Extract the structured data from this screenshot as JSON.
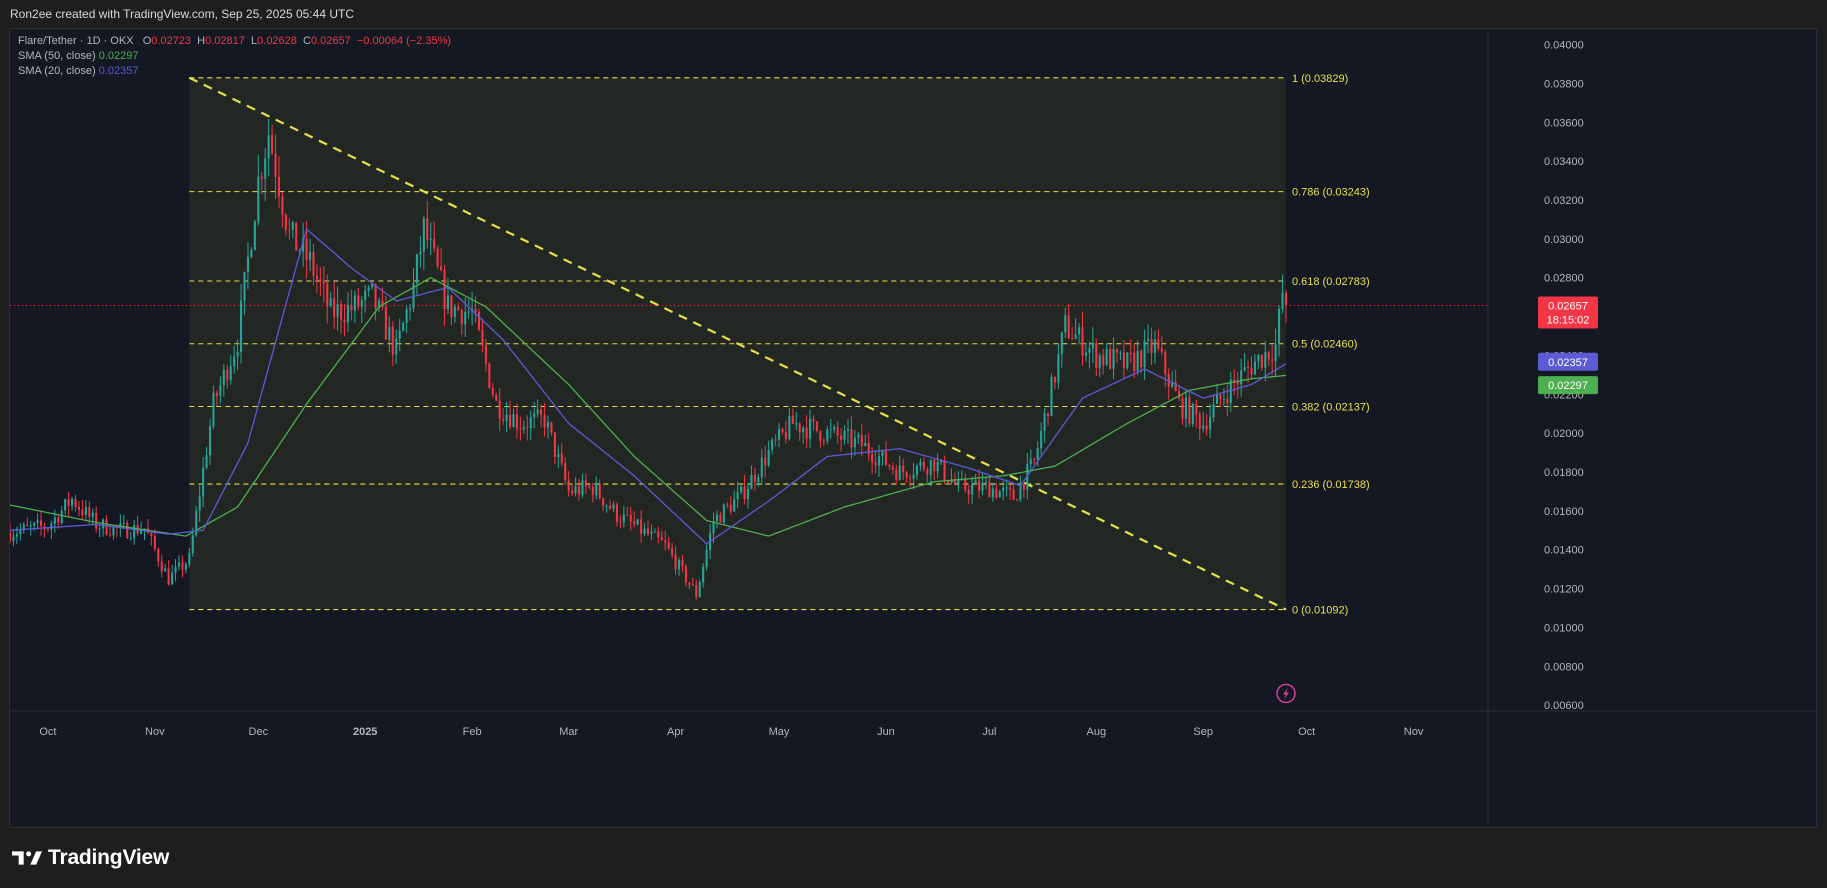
{
  "header": {
    "credit": "Ron2ee created with TradingView.com, Sep 25, 2025 05:44 UTC"
  },
  "legend": {
    "symbol": "Flare/Tether · 1D · OKX",
    "open_label": "O",
    "open": "0.02723",
    "high_label": "H",
    "high": "0.02817",
    "low_label": "L",
    "low": "0.02628",
    "close_label": "C",
    "close": "0.02657",
    "change": "−0.00064 (−2.35%)",
    "sma50_label": "SMA (50, close)",
    "sma50_value": "0.02297",
    "sma20_label": "SMA (20, close)",
    "sma20_value": "0.02357"
  },
  "price_tags": {
    "last": "0.02657",
    "countdown": "18:15:02",
    "sma20": "0.02357",
    "sma50": "0.02297"
  },
  "footer": {
    "brand": "TradingView"
  },
  "colors": {
    "background": "#141823",
    "up": "#26a69a",
    "down": "#f23645",
    "sma50": "#4caf50",
    "sma20": "#5b5bd6",
    "fib": "#e8e04a",
    "trendline": "#e8e04a"
  },
  "icons": {
    "flash": "lightning-icon",
    "logo": "tradingview-logo"
  },
  "chart_data": {
    "type": "candlestick",
    "symbol": "Flare/Tether",
    "timeframe": "1D",
    "exchange": "OKX",
    "x_labels": [
      "Oct",
      "Nov",
      "Dec",
      "2025",
      "Feb",
      "Mar",
      "Apr",
      "May",
      "Jun",
      "Jul",
      "Aug",
      "Sep",
      "Oct",
      "Nov"
    ],
    "x_label_dates": [
      "2024-10-01",
      "2024-11-01",
      "2024-12-01",
      "2025-01-01",
      "2025-02-01",
      "2025-03-01",
      "2025-04-01",
      "2025-05-01",
      "2025-06-01",
      "2025-07-01",
      "2025-08-01",
      "2025-09-01",
      "2025-10-01",
      "2025-11-01"
    ],
    "y_ticks": [
      "0.04000",
      "0.03800",
      "0.03600",
      "0.03400",
      "0.03200",
      "0.03000",
      "0.02800",
      "0.02600",
      "0.02400",
      "0.02200",
      "0.02000",
      "0.01800",
      "0.01600",
      "0.01400",
      "0.01200",
      "0.01000",
      "0.00800",
      "0.00600"
    ],
    "ylim": [
      0.0058,
      0.0408
    ],
    "x_range": [
      "2024-09-20",
      "2025-11-22"
    ],
    "last_price": 0.02657,
    "fibonacci": {
      "start_date": "2024-11-11",
      "end_date": "2025-09-25",
      "levels": [
        {
          "label": "1 (0.03829)",
          "value": 0.03829
        },
        {
          "label": "0.786 (0.03243)",
          "value": 0.03243
        },
        {
          "label": "0.618 (0.02783)",
          "value": 0.02783
        },
        {
          "label": "0.5 (0.02460)",
          "value": 0.0246
        },
        {
          "label": "0.382 (0.02137)",
          "value": 0.02137
        },
        {
          "label": "0.236 (0.01738)",
          "value": 0.01738
        },
        {
          "label": "0 (0.01092)",
          "value": 0.01092
        }
      ]
    },
    "trendline": {
      "start": {
        "date": "2024-11-11",
        "value": 0.03829
      },
      "end": {
        "date": "2025-09-25",
        "value": 0.01092
      }
    },
    "price_path": [
      [
        "2024-09-20",
        0.0149
      ],
      [
        "2024-10-01",
        0.0152
      ],
      [
        "2024-10-08",
        0.0166
      ],
      [
        "2024-10-15",
        0.0153
      ],
      [
        "2024-10-22",
        0.015
      ],
      [
        "2024-10-29",
        0.0151
      ],
      [
        "2024-11-05",
        0.0125
      ],
      [
        "2024-11-11",
        0.0135
      ],
      [
        "2024-11-18",
        0.0215
      ],
      [
        "2024-11-25",
        0.0248
      ],
      [
        "2024-12-01",
        0.033
      ],
      [
        "2024-12-04",
        0.0355
      ],
      [
        "2024-12-10",
        0.0302
      ],
      [
        "2024-12-16",
        0.0288
      ],
      [
        "2024-12-22",
        0.0262
      ],
      [
        "2024-12-28",
        0.0264
      ],
      [
        "2025-01-03",
        0.027
      ],
      [
        "2025-01-10",
        0.0242
      ],
      [
        "2025-01-15",
        0.0275
      ],
      [
        "2025-01-18",
        0.0305
      ],
      [
        "2025-01-25",
        0.0265
      ],
      [
        "2025-02-01",
        0.0262
      ],
      [
        "2025-02-08",
        0.0215
      ],
      [
        "2025-02-15",
        0.0205
      ],
      [
        "2025-02-22",
        0.0207
      ],
      [
        "2025-03-01",
        0.017
      ],
      [
        "2025-03-08",
        0.0172
      ],
      [
        "2025-03-15",
        0.0158
      ],
      [
        "2025-03-22",
        0.015
      ],
      [
        "2025-03-29",
        0.0142
      ],
      [
        "2025-04-07",
        0.0117
      ],
      [
        "2025-04-12",
        0.0155
      ],
      [
        "2025-04-20",
        0.0168
      ],
      [
        "2025-04-28",
        0.019
      ],
      [
        "2025-05-05",
        0.0205
      ],
      [
        "2025-05-15",
        0.02
      ],
      [
        "2025-05-25",
        0.0194
      ],
      [
        "2025-06-05",
        0.018
      ],
      [
        "2025-06-15",
        0.0185
      ],
      [
        "2025-06-22",
        0.0172
      ],
      [
        "2025-07-01",
        0.0172
      ],
      [
        "2025-07-08",
        0.0167
      ],
      [
        "2025-07-14",
        0.0185
      ],
      [
        "2025-07-20",
        0.023
      ],
      [
        "2025-07-23",
        0.0255
      ],
      [
        "2025-08-01",
        0.024
      ],
      [
        "2025-08-10",
        0.0235
      ],
      [
        "2025-08-18",
        0.0245
      ],
      [
        "2025-08-25",
        0.0215
      ],
      [
        "2025-09-01",
        0.0205
      ],
      [
        "2025-09-08",
        0.0222
      ],
      [
        "2025-09-15",
        0.0235
      ],
      [
        "2025-09-22",
        0.0245
      ],
      [
        "2025-09-24",
        0.0272
      ],
      [
        "2025-09-25",
        0.02657
      ]
    ],
    "sma50_path": [
      [
        "2024-09-20",
        0.0163
      ],
      [
        "2024-10-15",
        0.0154
      ],
      [
        "2024-11-10",
        0.0147
      ],
      [
        "2024-11-25",
        0.0162
      ],
      [
        "2024-12-15",
        0.0215
      ],
      [
        "2025-01-05",
        0.0265
      ],
      [
        "2025-01-20",
        0.028
      ],
      [
        "2025-02-05",
        0.0265
      ],
      [
        "2025-03-01",
        0.0225
      ],
      [
        "2025-03-20",
        0.0188
      ],
      [
        "2025-04-10",
        0.0155
      ],
      [
        "2025-04-28",
        0.0147
      ],
      [
        "2025-05-20",
        0.0162
      ],
      [
        "2025-06-15",
        0.0175
      ],
      [
        "2025-07-05",
        0.0178
      ],
      [
        "2025-07-20",
        0.0183
      ],
      [
        "2025-08-10",
        0.0205
      ],
      [
        "2025-08-28",
        0.0222
      ],
      [
        "2025-09-15",
        0.0228
      ],
      [
        "2025-09-25",
        0.02297
      ]
    ],
    "sma20_path": [
      [
        "2024-09-20",
        0.015
      ],
      [
        "2024-10-15",
        0.0153
      ],
      [
        "2024-11-05",
        0.0148
      ],
      [
        "2024-11-15",
        0.015
      ],
      [
        "2024-11-28",
        0.0195
      ],
      [
        "2024-12-15",
        0.0305
      ],
      [
        "2024-12-28",
        0.0285
      ],
      [
        "2025-01-10",
        0.0268
      ],
      [
        "2025-01-25",
        0.0275
      ],
      [
        "2025-02-10",
        0.0248
      ],
      [
        "2025-03-01",
        0.0205
      ],
      [
        "2025-03-20",
        0.0178
      ],
      [
        "2025-04-10",
        0.0143
      ],
      [
        "2025-04-28",
        0.0165
      ],
      [
        "2025-05-15",
        0.0188
      ],
      [
        "2025-06-05",
        0.0192
      ],
      [
        "2025-06-25",
        0.0182
      ],
      [
        "2025-07-10",
        0.0173
      ],
      [
        "2025-07-28",
        0.0218
      ],
      [
        "2025-08-15",
        0.0233
      ],
      [
        "2025-09-01",
        0.0218
      ],
      [
        "2025-09-15",
        0.0225
      ],
      [
        "2025-09-25",
        0.02357
      ]
    ]
  }
}
